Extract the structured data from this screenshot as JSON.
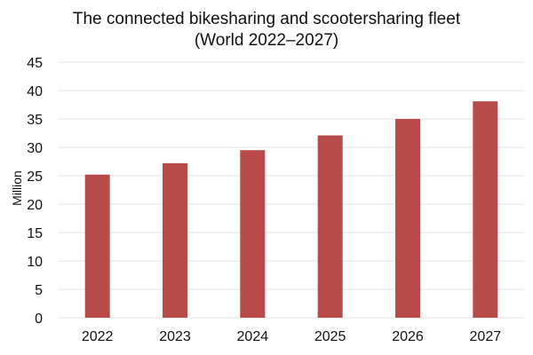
{
  "chart_data": {
    "type": "bar",
    "title_lines": [
      "The connected bikesharing and scootersharing fleet",
      "(World 2022–2027)"
    ],
    "xlabel": "",
    "ylabel": "Million",
    "categories": [
      "2022",
      "2023",
      "2024",
      "2025",
      "2026",
      "2027"
    ],
    "values": [
      25.2,
      27.2,
      29.5,
      32.1,
      35.0,
      38.1
    ],
    "ylim": [
      0,
      45
    ],
    "yticks": [
      0,
      5,
      10,
      15,
      20,
      25,
      30,
      35,
      40,
      45
    ],
    "grid": true,
    "legend": "none",
    "bar_color": "#b84a4a",
    "grid_color": "#e6e6e6"
  }
}
